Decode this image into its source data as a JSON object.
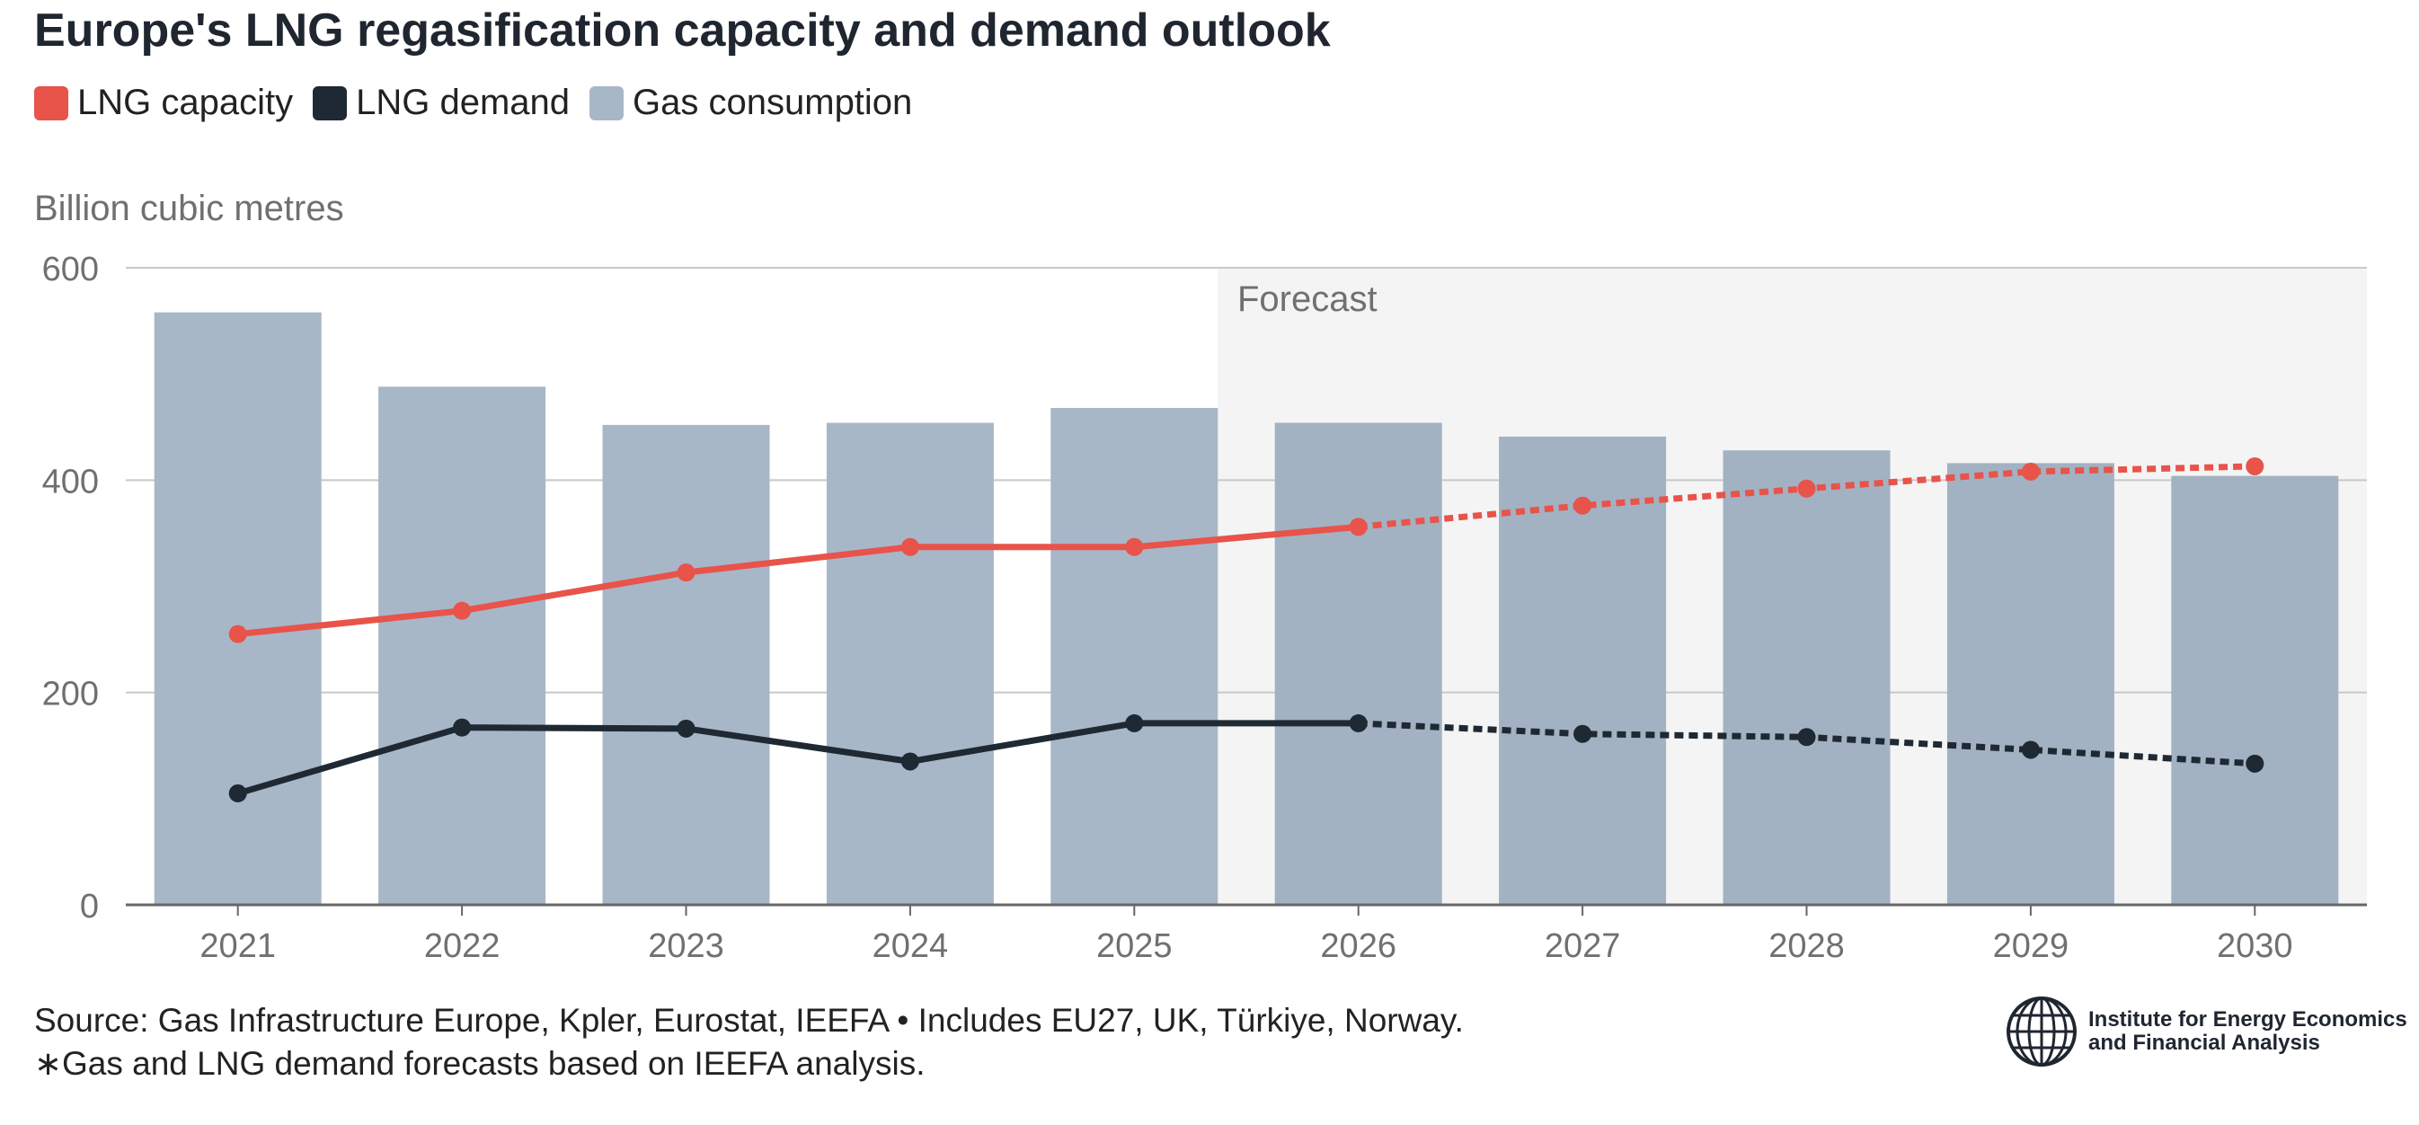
{
  "title": "Europe's LNG regasification capacity and demand outlook",
  "unit_label": "Billion cubic metres",
  "forecast_label": "Forecast",
  "source_line1": "Source: Gas Infrastructure Europe, Kpler, Eurostat, IEEFA • Includes EU27, UK, Türkiye, Norway.",
  "source_line2": "∗Gas and LNG demand forecasts based on IEEFA analysis.",
  "logo": {
    "line1": "Institute for Energy Economics",
    "line2": "and Financial Analysis",
    "icon": "globe-icon"
  },
  "colors": {
    "capacity": "#e8534a",
    "demand": "#1f2933",
    "consumption": "#a7b7c8",
    "consumption_forecast": "#a2b2c2",
    "forecast_bg": "#f4f4f4",
    "grid": "#c8c8c8",
    "axis": "#666666",
    "tick": "#707070"
  },
  "chart_data": {
    "type": "bar",
    "title": "Europe's LNG regasification capacity and demand outlook",
    "ylabel": "Billion cubic metres",
    "ylim": [
      0,
      600
    ],
    "yticks": [
      0,
      200,
      400,
      600
    ],
    "categories": [
      "2021",
      "2022",
      "2023",
      "2024",
      "2025",
      "2026",
      "2027",
      "2028",
      "2029",
      "2030"
    ],
    "forecast_start": "2026",
    "legend_placement": "top-left",
    "grid": true,
    "series": [
      {
        "name": "LNG capacity",
        "type": "line",
        "values": [
          255,
          277,
          313,
          337,
          337,
          356,
          376,
          392,
          408,
          413
        ]
      },
      {
        "name": "LNG demand",
        "type": "line",
        "values": [
          105,
          167,
          166,
          135,
          171,
          171,
          161,
          158,
          146,
          133
        ]
      },
      {
        "name": "Gas consumption",
        "type": "bar",
        "values": [
          558,
          488,
          452,
          454,
          468,
          454,
          441,
          428,
          416,
          404
        ]
      }
    ]
  }
}
